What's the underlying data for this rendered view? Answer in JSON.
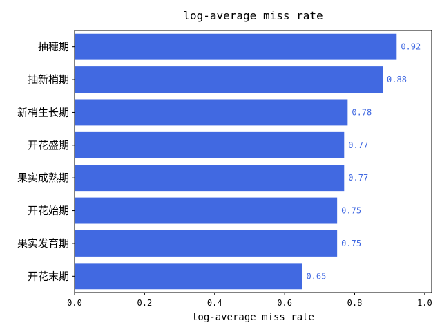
{
  "chart_data": {
    "type": "bar",
    "orientation": "horizontal",
    "title": "log-average miss rate",
    "xlabel": "log-average miss rate",
    "ylabel": "",
    "categories": [
      "抽穗期",
      "抽新梢期",
      "新梢生长期",
      "开花盛期",
      "果实成熟期",
      "开花始期",
      "果实发育期",
      "开花末期"
    ],
    "values": [
      0.92,
      0.88,
      0.78,
      0.77,
      0.77,
      0.75,
      0.75,
      0.65
    ],
    "data_labels": [
      "0.92",
      "0.88",
      "0.78",
      "0.77",
      "0.77",
      "0.75",
      "0.75",
      "0.65"
    ],
    "xlim": [
      0,
      1.02
    ],
    "xticks": [
      0.0,
      0.2,
      0.4,
      0.6,
      0.8,
      1.0
    ],
    "xtick_labels": [
      "0.0",
      "0.2",
      "0.4",
      "0.6",
      "0.8",
      "1.0"
    ],
    "bar_color": "#4169e1",
    "label_color": "#4169e1",
    "grid": false,
    "legend": "none"
  }
}
